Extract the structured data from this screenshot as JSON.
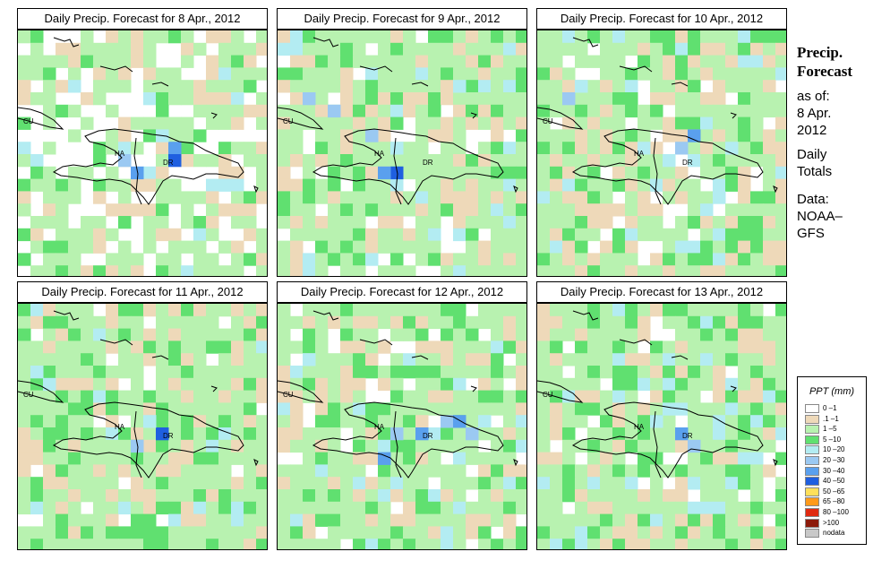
{
  "panels": [
    {
      "title": "Daily Precip. Forecast for  8 Apr., 2012"
    },
    {
      "title": "Daily Precip. Forecast for  9 Apr., 2012"
    },
    {
      "title": "Daily Precip. Forecast for  10 Apr., 2012"
    },
    {
      "title": "Daily Precip. Forecast for  11 Apr., 2012"
    },
    {
      "title": "Daily Precip. Forecast for  12 Apr., 2012"
    },
    {
      "title": "Daily Precip. Forecast for  13 Apr., 2012"
    }
  ],
  "map_labels": {
    "cuba": "CU",
    "haiti": "HA",
    "dominican_republic": "DR"
  },
  "sidebar": {
    "title_line1": "Precip.",
    "title_line2": "Forecast",
    "asof": "as of:",
    "date_line1": "8 Apr.",
    "date_line2": "2012",
    "totals_line1": "Daily",
    "totals_line2": "Totals",
    "data_line1": "Data:",
    "data_line2": "NOAA–",
    "data_line3": "GFS"
  },
  "legend": {
    "title": "PPT (mm)",
    "entries": [
      {
        "label": "0 –1",
        "color": "#ffffff"
      },
      {
        "label": ".1 –1",
        "color": "#eed9b9"
      },
      {
        "label": "1 –5",
        "color": "#b8f2b0"
      },
      {
        "label": "5 –10",
        "color": "#60e070"
      },
      {
        "label": "10 –20",
        "color": "#b3ecf2"
      },
      {
        "label": "20 –30",
        "color": "#9bc9f2"
      },
      {
        "label": "30 –40",
        "color": "#5aa0ee"
      },
      {
        "label": "40 –50",
        "color": "#1f5fe0"
      },
      {
        "label": "50 –65",
        "color": "#ffe05a"
      },
      {
        "label": "65 –80",
        "color": "#ff9a1a"
      },
      {
        "label": "80 –100",
        "color": "#e02a10"
      },
      {
        "label": ">100",
        "color": "#8c1a0a"
      },
      {
        "label": "nodata",
        "color": "#c8c8c8"
      }
    ]
  }
}
